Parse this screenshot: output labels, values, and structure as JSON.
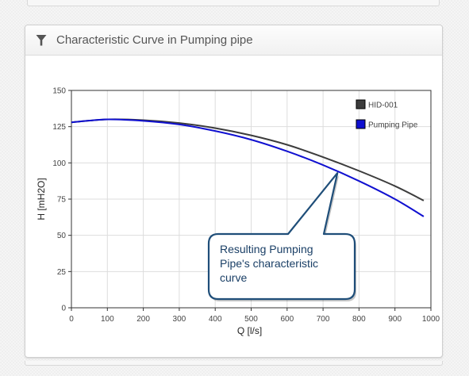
{
  "panel": {
    "title": "Characteristic Curve in Pumping pipe",
    "icon": "filter-icon"
  },
  "annotation": {
    "lines": [
      "Resulting Pumping",
      "Pipe's characteristic",
      "curve"
    ],
    "border_color": "#1f4e79"
  },
  "chart_data": {
    "type": "line",
    "xlabel": "Q [l/s]",
    "ylabel": "H [mH2O]",
    "xlim": [
      0,
      1000
    ],
    "ylim": [
      0,
      150
    ],
    "xticks": [
      0,
      100,
      200,
      300,
      400,
      500,
      600,
      700,
      800,
      900,
      1000
    ],
    "yticks": [
      0,
      25,
      50,
      75,
      100,
      125,
      150
    ],
    "grid": true,
    "legend_position": "top-right",
    "series": [
      {
        "name": "HID-001",
        "color": "#3c3c3c",
        "x": [
          0,
          100,
          200,
          300,
          400,
          500,
          600,
          700,
          800,
          900,
          980
        ],
        "y": [
          128,
          130,
          129.5,
          127.5,
          124,
          119,
          112.5,
          104,
          94.5,
          84,
          74
        ]
      },
      {
        "name": "Pumping Pipe",
        "color": "#1010d0",
        "x": [
          0,
          100,
          200,
          300,
          400,
          500,
          600,
          700,
          800,
          900,
          980
        ],
        "y": [
          128,
          130,
          129,
          126.5,
          122,
          116,
          108,
          98.5,
          87.5,
          75,
          63
        ]
      }
    ]
  }
}
